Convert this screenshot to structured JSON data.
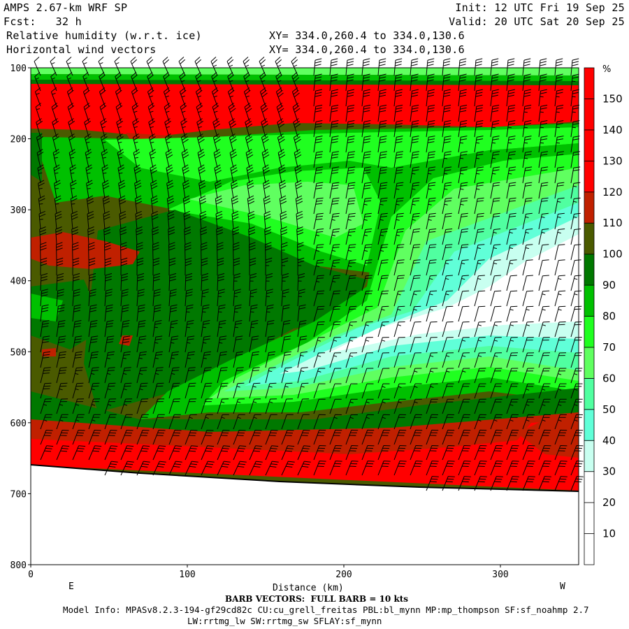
{
  "header": {
    "model": "AMPS 2.67-km WRF SP",
    "forecast": "Fcst:   32 h",
    "init": "Init: 12 UTC Fri 19 Sep 25",
    "valid": "Valid: 20 UTC Sat 20 Sep 25",
    "field1": "Relative humidity (w.r.t. ice)",
    "field2": "Horizontal wind vectors",
    "xy1": "XY= 334.0,260.4 to 334.0,130.6",
    "xy2": "XY= 334.0,260.4 to 334.0,130.6"
  },
  "footer": {
    "barb_note": "BARB VECTORS:  FULL BARB = 10 kts",
    "model_info": "Model Info: MPASv8.2.3-194-gf29cd82c CU:cu_grell_freitas PBL:bl_mynn MP:mp_thompson SF:sf_noahmp 2.7",
    "model_info2": "LW:rrtmg_lw SW:rrtmg_sw SFLAY:sf_mynn"
  },
  "chart_data": {
    "type": "heatmap",
    "title": "Relative humidity (w.r.t. ice) cross-section with horizontal wind barbs",
    "xlabel": "Distance (km)",
    "x_end_labels": {
      "left": "E",
      "right": "W"
    },
    "xlim": [
      0,
      350
    ],
    "xticks": [
      "0",
      "100",
      "200",
      "300"
    ],
    "ylim": [
      100,
      800
    ],
    "yticks": [
      "100",
      "200",
      "300",
      "400",
      "500",
      "600",
      "700",
      "800"
    ],
    "colorbar": {
      "unit": "%",
      "labels": [
        "150",
        "140",
        "130",
        "120",
        "110",
        "100",
        "90",
        "80",
        "70",
        "60",
        "50",
        "40",
        "30",
        "20",
        "10"
      ],
      "levels": [
        0,
        10,
        20,
        30,
        40,
        50,
        60,
        70,
        80,
        90,
        100,
        110,
        120,
        130,
        140,
        150,
        160
      ],
      "colors": [
        "#ffffff",
        "#ffffff",
        "#ffffff",
        "#c8fff0",
        "#60ffd8",
        "#50ffa0",
        "#60ff60",
        "#20ff20",
        "#00c000",
        "#007800",
        "#4a5a00",
        "#c02000",
        "#ff0000",
        "#ff0000",
        "#ff0000",
        "#ff0000"
      ]
    },
    "features": {
      "upper_moist_band_hPa": [
        120,
        180
      ],
      "lower_moist_band_hPa": [
        620,
        690
      ],
      "dry_core": {
        "distance_km": [
          200,
          350
        ],
        "pressure_hPa": [
          400,
          510
        ],
        "rh_pct": "<30"
      },
      "surface_pressure_hPa": {
        "at_0km": 655,
        "at_350km": 698
      }
    }
  }
}
